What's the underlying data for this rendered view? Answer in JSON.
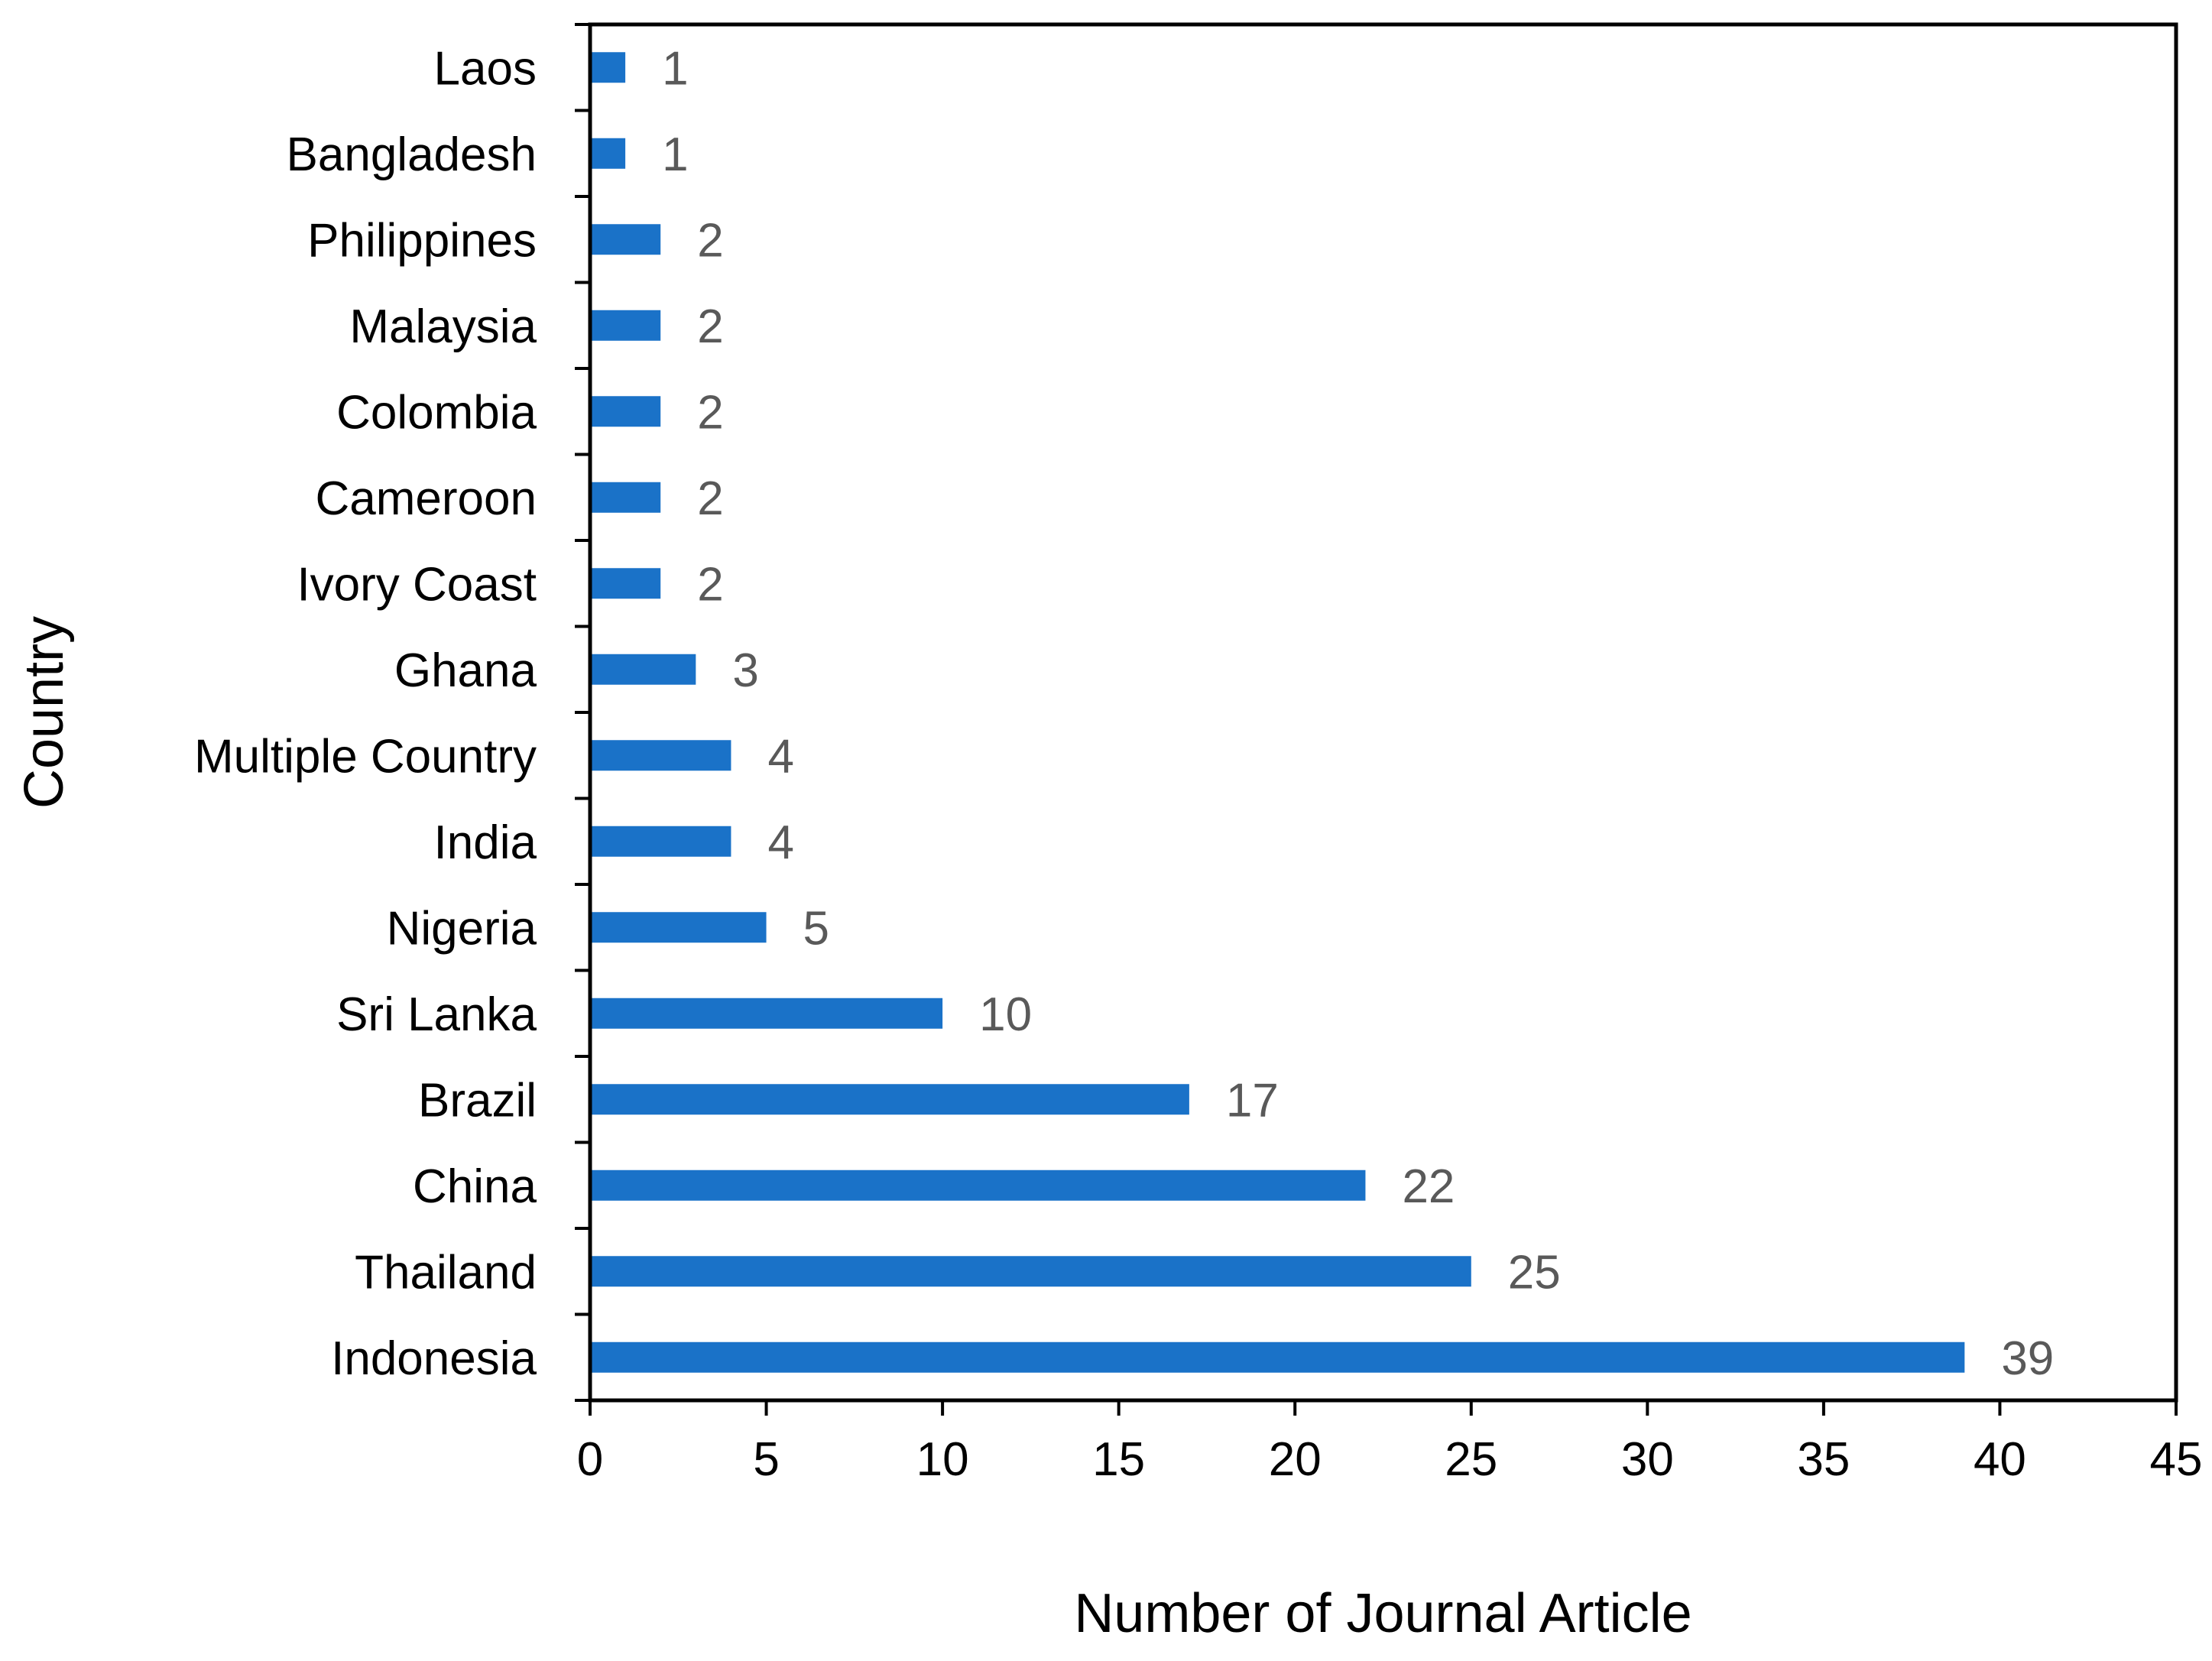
{
  "chart_data": {
    "type": "bar",
    "orientation": "horizontal",
    "categories": [
      "Laos",
      "Bangladesh",
      "Philippines",
      "Malaysia",
      "Colombia",
      "Cameroon",
      "Ivory Coast",
      "Ghana",
      "Multiple Country",
      "India",
      "Nigeria",
      "Sri Lanka",
      "Brazil",
      "China",
      "Thailand",
      "Indonesia"
    ],
    "values": [
      1,
      1,
      2,
      2,
      2,
      2,
      2,
      3,
      4,
      4,
      5,
      10,
      17,
      22,
      25,
      39
    ],
    "xlabel": "Number of Journal Article",
    "ylabel": "Country",
    "xlim": [
      0,
      45
    ],
    "xticks": [
      0,
      5,
      10,
      15,
      20,
      25,
      30,
      35,
      40,
      45
    ],
    "data_labels": true,
    "grid": false,
    "legend": "none",
    "bar_color": "#1a72c8",
    "data_label_color": "#595959"
  }
}
